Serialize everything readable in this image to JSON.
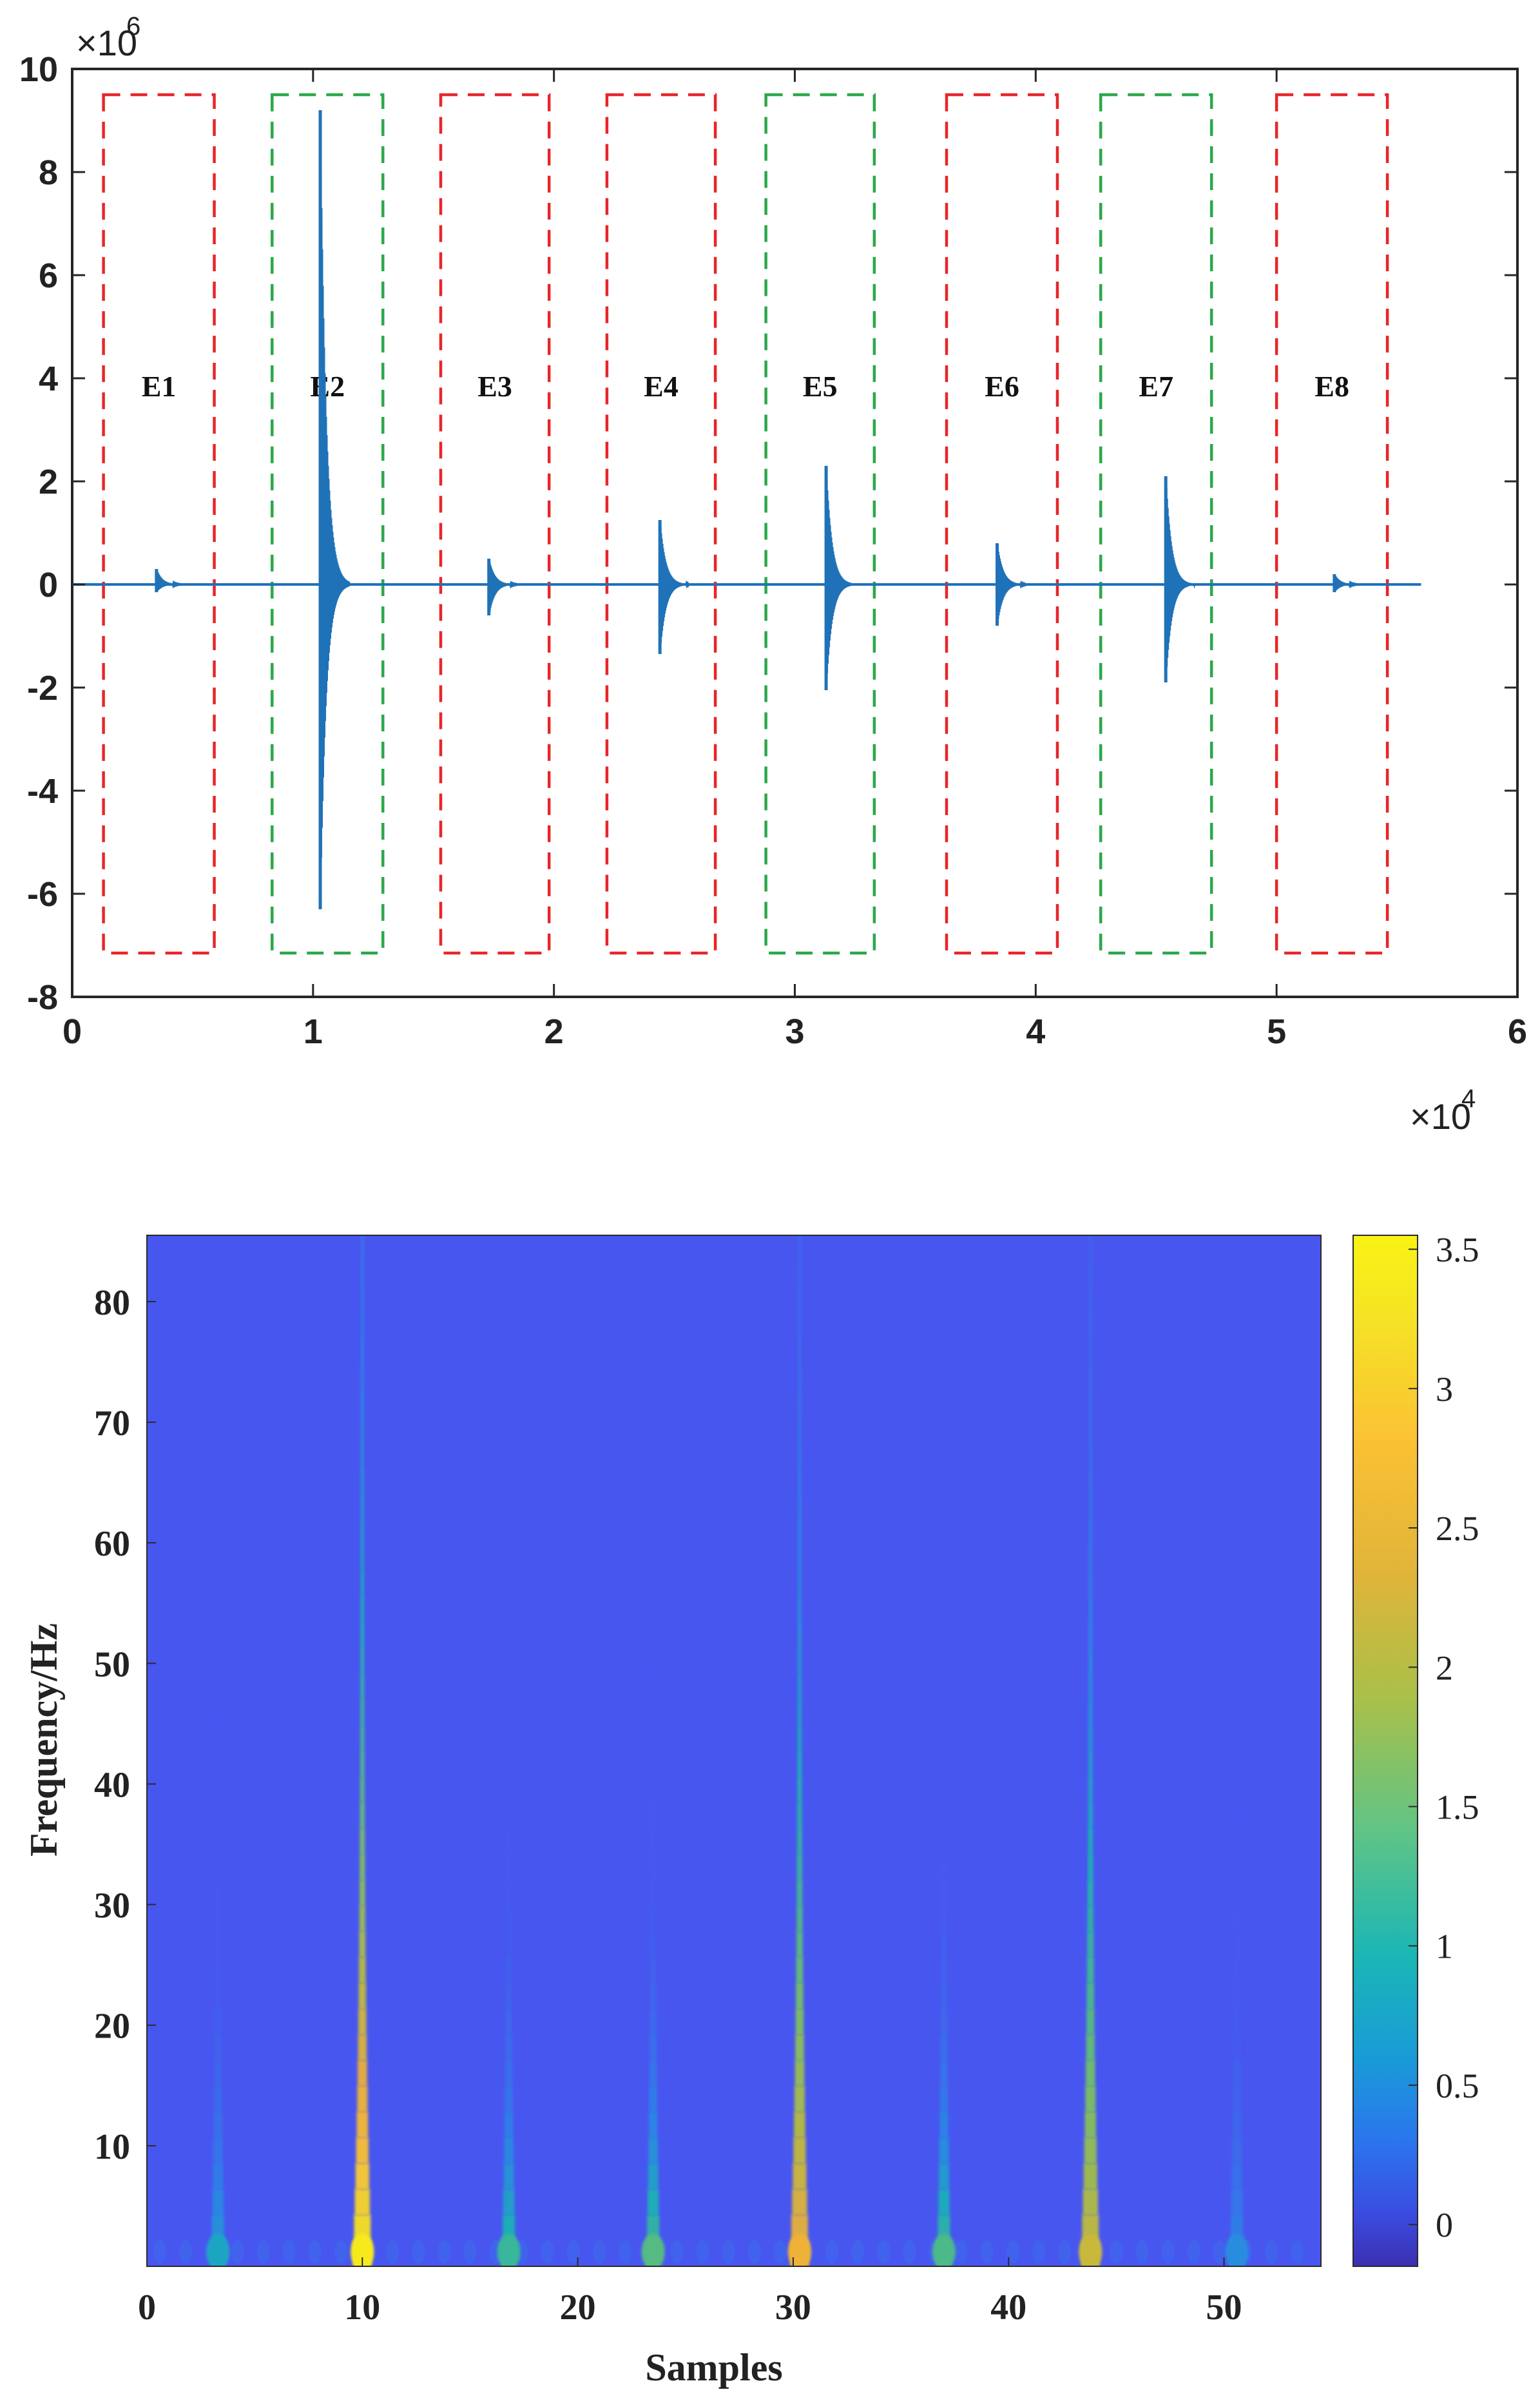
{
  "chart_data": [
    {
      "type": "line",
      "title": "",
      "xlabel": "",
      "ylabel": "",
      "xlim": [
        0,
        6
      ],
      "ylim": [
        -8,
        10
      ],
      "x_multiplier": "×10",
      "x_exponent": "4",
      "y_multiplier": "×10",
      "y_exponent": "6",
      "x_ticks": [
        "0",
        "1",
        "2",
        "3",
        "4",
        "5",
        "6"
      ],
      "y_ticks": [
        "-8",
        "-6",
        "-4",
        "-2",
        "0",
        "2",
        "4",
        "6",
        "8",
        "10"
      ],
      "signal_color": "#1f72b8",
      "signal_end": 5.6,
      "bursts": [
        {
          "x": 0.35,
          "max": 0.3,
          "min": -0.15
        },
        {
          "x": 1.03,
          "max": 9.2,
          "min": -6.3
        },
        {
          "x": 1.73,
          "max": 0.5,
          "min": -0.6
        },
        {
          "x": 2.44,
          "max": 1.25,
          "min": -1.35
        },
        {
          "x": 3.13,
          "max": 2.3,
          "min": -2.05
        },
        {
          "x": 3.84,
          "max": 0.8,
          "min": -0.8
        },
        {
          "x": 4.54,
          "max": 2.1,
          "min": -1.9
        },
        {
          "x": 5.24,
          "max": 0.2,
          "min": -0.15
        }
      ],
      "events": [
        {
          "label": "E1",
          "x0": 0.13,
          "x1": 0.59,
          "color": "#e8262a"
        },
        {
          "label": "E2",
          "x0": 0.83,
          "x1": 1.29,
          "color": "#2ba84a"
        },
        {
          "label": "E3",
          "x0": 1.53,
          "x1": 1.98,
          "color": "#e8262a"
        },
        {
          "label": "E4",
          "x0": 2.22,
          "x1": 2.67,
          "color": "#e8262a"
        },
        {
          "label": "E5",
          "x0": 2.88,
          "x1": 3.33,
          "color": "#2ba84a"
        },
        {
          "label": "E6",
          "x0": 3.63,
          "x1": 4.09,
          "color": "#e8262a"
        },
        {
          "label": "E7",
          "x0": 4.27,
          "x1": 4.73,
          "color": "#2ba84a"
        },
        {
          "label": "E8",
          "x0": 5.0,
          "x1": 5.46,
          "color": "#e8262a"
        }
      ],
      "box_y_range": [
        -7.15,
        9.5
      ]
    },
    {
      "type": "heatmap",
      "title": "",
      "xlabel": "Samples",
      "ylabel": "Frequency/Hz",
      "xlim": [
        0,
        54.5
      ],
      "ylim": [
        0,
        85.5
      ],
      "x_ticks": [
        "0",
        "10",
        "20",
        "30",
        "40",
        "50"
      ],
      "y_ticks": [
        "10",
        "20",
        "30",
        "40",
        "50",
        "60",
        "70",
        "80"
      ],
      "colorbar_ticks": [
        "0",
        "0.5",
        "1",
        "1.5",
        "2",
        "2.5",
        "3",
        "3.5"
      ],
      "colorbar_range": [
        -0.15,
        3.55
      ],
      "colormap": "parula",
      "background_color": "#4856f0",
      "ridges": [
        {
          "x": 3.3,
          "peak": 0.45
        },
        {
          "x": 10.0,
          "peak": 3.5
        },
        {
          "x": 16.8,
          "peak": 0.7
        },
        {
          "x": 23.5,
          "peak": 0.85
        },
        {
          "x": 30.3,
          "peak": 2.2
        },
        {
          "x": 37.0,
          "peak": 0.8
        },
        {
          "x": 43.8,
          "peak": 1.7
        },
        {
          "x": 50.6,
          "peak": 0.3
        }
      ]
    }
  ]
}
